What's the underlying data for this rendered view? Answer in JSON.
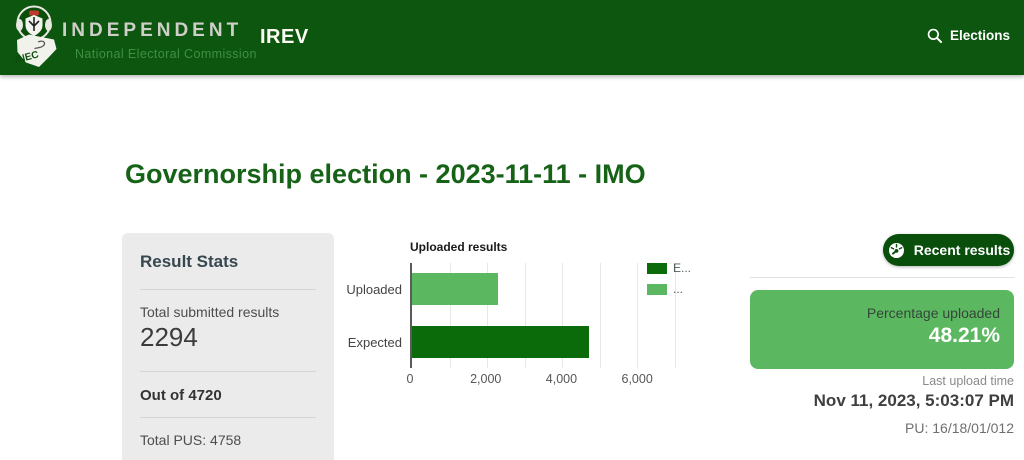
{
  "header": {
    "brand_title": "INDEPENDENT",
    "brand_subtitle": "National Electoral Commission",
    "app_name": "IREV",
    "nav": {
      "elections_label": "Elections"
    },
    "icons": {
      "search": "search-icon",
      "logo": "inec-logo"
    },
    "colors": {
      "background": "#0d560f"
    }
  },
  "page": {
    "title": "Governorship election - 2023-11-11 - IMO",
    "title_color": "#166317"
  },
  "stats_panel": {
    "heading": "Result Stats",
    "total_submitted_label": "Total submitted results",
    "total_submitted_value": "2294",
    "out_of_label": "Out of 4720",
    "total_pus_label": "Total PUS: 4758"
  },
  "chart_data": {
    "type": "bar",
    "orientation": "horizontal",
    "title": "Uploaded results",
    "categories": [
      "Uploaded",
      "Expected"
    ],
    "values": [
      2294,
      4720
    ],
    "colors": [
      "#5cb860",
      "#0b6b0b"
    ],
    "xlim": [
      0,
      7000
    ],
    "ticks": [
      0,
      2000,
      4000,
      6000
    ],
    "tick_labels": [
      "0",
      "2,000",
      "4,000",
      "6,000"
    ],
    "gridlines": [
      1000,
      2000,
      3000,
      4000,
      5000,
      6000,
      7000
    ],
    "grid": true,
    "legend_position": "right",
    "legend": [
      {
        "label": "E...",
        "color": "#0b6b0b"
      },
      {
        "label": "...",
        "color": "#5cb860"
      }
    ]
  },
  "right_panel": {
    "recent_results_label": "Recent results",
    "recent_results_icon": "gauge-icon",
    "percentage_label": "Percentage uploaded",
    "percentage_value": "48.21%",
    "percentage_box_color": "#5cb860",
    "last_upload_label": "Last upload time",
    "last_upload_value": "Nov 11, 2023, 5:03:07 PM",
    "pu_code": "PU: 16/18/01/012"
  }
}
